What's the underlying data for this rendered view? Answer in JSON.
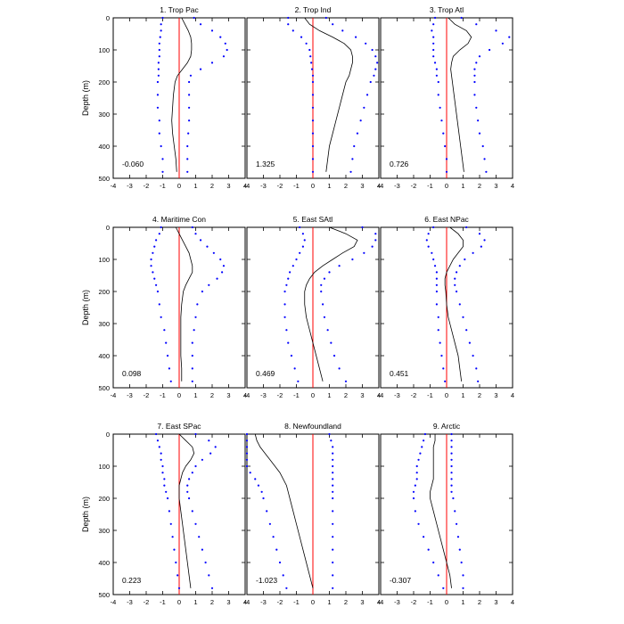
{
  "figure": {
    "xlim": [
      -4,
      4
    ],
    "ylim": [
      0,
      500
    ],
    "ylabel": "Depth (m)",
    "x_ticks": [
      -4,
      -3,
      -2,
      -1,
      0,
      1,
      2,
      3,
      4
    ],
    "y_ticks": [
      0,
      100,
      200,
      300,
      400,
      500
    ],
    "colors": {
      "mean_line": "#000000",
      "zero_line": "#ff0000",
      "bound_dots": "#0000ff"
    }
  },
  "chart_data": [
    {
      "type": "line",
      "title": "1. Trop Pac",
      "annotation": "-0.060",
      "depth": [
        0,
        20,
        40,
        60,
        80,
        100,
        120,
        140,
        160,
        180,
        200,
        240,
        280,
        320,
        360,
        400,
        440,
        480
      ],
      "series": [
        {
          "role": "mean",
          "values": [
            0.15,
            0.35,
            0.55,
            0.7,
            0.75,
            0.75,
            0.7,
            0.5,
            0.2,
            -0.1,
            -0.25,
            -0.35,
            -0.4,
            -0.45,
            -0.4,
            -0.3,
            -0.2,
            -0.15
          ]
        },
        {
          "role": "lower",
          "values": [
            -1.0,
            -1.1,
            -1.1,
            -1.15,
            -1.2,
            -1.2,
            -1.2,
            -1.25,
            -1.25,
            -1.25,
            -1.3,
            -1.3,
            -1.3,
            -1.2,
            -1.2,
            -1.1,
            -1.0,
            -1.0
          ]
        },
        {
          "role": "upper",
          "values": [
            0.9,
            1.3,
            2.0,
            2.5,
            2.8,
            2.9,
            2.7,
            2.0,
            1.3,
            0.7,
            0.6,
            0.6,
            0.6,
            0.6,
            0.55,
            0.5,
            0.5,
            0.5
          ]
        }
      ]
    },
    {
      "type": "line",
      "title": "2. Trop Ind",
      "annotation": "1.325",
      "depth": [
        0,
        20,
        40,
        60,
        80,
        100,
        120,
        140,
        160,
        180,
        200,
        240,
        280,
        320,
        360,
        400,
        440,
        480
      ],
      "series": [
        {
          "role": "mean",
          "values": [
            -0.5,
            -0.2,
            0.4,
            1.2,
            1.9,
            2.3,
            2.4,
            2.4,
            2.3,
            2.2,
            2.0,
            1.8,
            1.6,
            1.4,
            1.2,
            1.0,
            0.9,
            0.8
          ]
        },
        {
          "role": "lower",
          "values": [
            -1.5,
            -1.5,
            -1.2,
            -0.7,
            -0.4,
            -0.2,
            -0.15,
            -0.1,
            -0.05,
            0.0,
            0.0,
            0.0,
            0.0,
            0.0,
            0.0,
            0.0,
            0.0,
            0.0
          ]
        },
        {
          "role": "upper",
          "values": [
            0.8,
            1.2,
            1.8,
            2.6,
            3.2,
            3.6,
            3.8,
            3.9,
            3.8,
            3.7,
            3.5,
            3.3,
            3.1,
            2.9,
            2.7,
            2.5,
            2.4,
            2.3
          ]
        }
      ]
    },
    {
      "type": "line",
      "title": "3. Trop Atl",
      "annotation": "0.726",
      "depth": [
        0,
        20,
        40,
        60,
        80,
        100,
        120,
        140,
        160,
        180,
        200,
        240,
        280,
        320,
        360,
        400,
        440,
        480
      ],
      "series": [
        {
          "role": "mean",
          "values": [
            0.1,
            0.5,
            1.2,
            1.5,
            1.3,
            0.8,
            0.4,
            0.3,
            0.25,
            0.3,
            0.35,
            0.45,
            0.55,
            0.65,
            0.75,
            0.85,
            0.95,
            1.05
          ]
        },
        {
          "role": "lower",
          "values": [
            -0.7,
            -0.8,
            -0.9,
            -0.8,
            -0.8,
            -0.8,
            -0.8,
            -0.7,
            -0.6,
            -0.6,
            -0.5,
            -0.5,
            -0.4,
            -0.3,
            -0.2,
            -0.1,
            0.0,
            0.0
          ]
        },
        {
          "role": "upper",
          "values": [
            0.9,
            1.8,
            3.0,
            3.8,
            3.4,
            2.6,
            2.0,
            1.8,
            1.7,
            1.7,
            1.7,
            1.7,
            1.8,
            1.9,
            2.0,
            2.2,
            2.3,
            2.4
          ]
        }
      ]
    },
    {
      "type": "line",
      "title": "4. Maritime Con",
      "annotation": "0.098",
      "depth": [
        0,
        20,
        40,
        60,
        80,
        100,
        120,
        140,
        160,
        180,
        200,
        240,
        280,
        320,
        360,
        400,
        440,
        480
      ],
      "series": [
        {
          "role": "mean",
          "values": [
            -0.2,
            0.0,
            0.2,
            0.4,
            0.6,
            0.7,
            0.8,
            0.8,
            0.6,
            0.4,
            0.25,
            0.15,
            0.1,
            0.1,
            0.1,
            0.1,
            0.15,
            0.15
          ]
        },
        {
          "role": "lower",
          "values": [
            -1.1,
            -1.2,
            -1.4,
            -1.5,
            -1.6,
            -1.7,
            -1.7,
            -1.6,
            -1.5,
            -1.4,
            -1.3,
            -1.2,
            -1.1,
            -0.9,
            -0.8,
            -0.7,
            -0.6,
            -0.5
          ]
        },
        {
          "role": "upper",
          "values": [
            0.8,
            1.0,
            1.3,
            1.7,
            2.1,
            2.5,
            2.7,
            2.6,
            2.3,
            1.8,
            1.4,
            1.1,
            1.0,
            0.9,
            0.8,
            0.8,
            0.8,
            0.8
          ]
        }
      ]
    },
    {
      "type": "line",
      "title": "5. East SAtl",
      "annotation": "0.469",
      "depth": [
        0,
        20,
        40,
        60,
        80,
        100,
        120,
        140,
        160,
        180,
        200,
        240,
        280,
        320,
        360,
        400,
        440,
        480
      ],
      "series": [
        {
          "role": "mean",
          "values": [
            1.0,
            2.0,
            2.7,
            2.5,
            1.8,
            1.2,
            0.6,
            0.1,
            -0.2,
            -0.4,
            -0.5,
            -0.5,
            -0.4,
            -0.2,
            0.0,
            0.2,
            0.4,
            0.6
          ]
        },
        {
          "role": "lower",
          "values": [
            -0.8,
            -0.6,
            -0.5,
            -0.6,
            -0.8,
            -1.0,
            -1.2,
            -1.4,
            -1.5,
            -1.6,
            -1.7,
            -1.7,
            -1.7,
            -1.6,
            -1.5,
            -1.3,
            -1.1,
            -0.9
          ]
        },
        {
          "role": "upper",
          "values": [
            3.0,
            3.8,
            3.8,
            3.6,
            3.1,
            2.4,
            1.6,
            1.0,
            0.7,
            0.5,
            0.5,
            0.6,
            0.7,
            0.9,
            1.1,
            1.3,
            1.6,
            2.0
          ]
        }
      ]
    },
    {
      "type": "line",
      "title": "6. East NPac",
      "annotation": "0.451",
      "depth": [
        0,
        20,
        40,
        60,
        80,
        100,
        120,
        140,
        160,
        180,
        200,
        240,
        280,
        320,
        360,
        400,
        440,
        480
      ],
      "series": [
        {
          "role": "mean",
          "values": [
            0.2,
            0.7,
            1.0,
            1.0,
            0.7,
            0.4,
            0.2,
            0.0,
            -0.1,
            -0.1,
            -0.05,
            0.0,
            0.1,
            0.3,
            0.5,
            0.7,
            0.8,
            0.9
          ]
        },
        {
          "role": "lower",
          "values": [
            -0.8,
            -1.1,
            -1.2,
            -1.1,
            -0.9,
            -0.8,
            -0.7,
            -0.6,
            -0.6,
            -0.6,
            -0.6,
            -0.6,
            -0.5,
            -0.5,
            -0.4,
            -0.3,
            -0.2,
            -0.1
          ]
        },
        {
          "role": "upper",
          "values": [
            1.2,
            2.0,
            2.3,
            2.1,
            1.6,
            1.1,
            0.8,
            0.6,
            0.5,
            0.5,
            0.6,
            0.8,
            1.0,
            1.2,
            1.4,
            1.6,
            1.8,
            1.9
          ]
        }
      ]
    },
    {
      "type": "line",
      "title": "7. East SPac",
      "annotation": "0.223",
      "depth": [
        0,
        20,
        40,
        60,
        80,
        100,
        120,
        140,
        160,
        180,
        200,
        240,
        280,
        320,
        360,
        400,
        440,
        480
      ],
      "series": [
        {
          "role": "mean",
          "values": [
            0.0,
            0.4,
            0.8,
            0.9,
            0.7,
            0.4,
            0.2,
            0.1,
            0.0,
            0.0,
            0.0,
            0.1,
            0.2,
            0.3,
            0.4,
            0.5,
            0.6,
            0.7
          ]
        },
        {
          "role": "lower",
          "values": [
            -1.4,
            -1.3,
            -1.2,
            -1.1,
            -1.1,
            -1.0,
            -1.0,
            -0.9,
            -0.9,
            -0.8,
            -0.7,
            -0.6,
            -0.5,
            -0.4,
            -0.3,
            -0.2,
            -0.1,
            0.0
          ]
        },
        {
          "role": "upper",
          "values": [
            1.0,
            1.8,
            2.2,
            1.9,
            1.4,
            1.0,
            0.8,
            0.6,
            0.5,
            0.5,
            0.6,
            0.8,
            1.0,
            1.2,
            1.4,
            1.6,
            1.8,
            2.0
          ]
        }
      ]
    },
    {
      "type": "line",
      "title": "8. Newfoundland",
      "annotation": "-1.023",
      "depth": [
        0,
        20,
        40,
        60,
        80,
        100,
        120,
        140,
        160,
        180,
        200,
        240,
        280,
        320,
        360,
        400,
        440,
        480
      ],
      "series": [
        {
          "role": "mean",
          "values": [
            -3.5,
            -3.4,
            -3.2,
            -2.9,
            -2.6,
            -2.3,
            -2.0,
            -1.8,
            -1.6,
            -1.5,
            -1.4,
            -1.2,
            -1.0,
            -0.8,
            -0.6,
            -0.4,
            -0.2,
            0.0
          ]
        },
        {
          "role": "lower",
          "values": [
            -4.0,
            -4.0,
            -4.0,
            -4.0,
            -4.0,
            -4.0,
            -3.8,
            -3.5,
            -3.3,
            -3.1,
            -3.0,
            -2.8,
            -2.6,
            -2.4,
            -2.2,
            -2.0,
            -1.8,
            -1.6
          ]
        },
        {
          "role": "upper",
          "values": [
            1.0,
            1.1,
            1.2,
            1.2,
            1.2,
            1.2,
            1.2,
            1.2,
            1.2,
            1.2,
            1.2,
            1.2,
            1.2,
            1.2,
            1.2,
            1.2,
            1.2,
            1.2
          ]
        }
      ]
    },
    {
      "type": "line",
      "title": "9. Arctic",
      "annotation": "-0.307",
      "depth": [
        0,
        20,
        40,
        60,
        80,
        100,
        120,
        140,
        160,
        180,
        200,
        240,
        280,
        320,
        360,
        400,
        440,
        480
      ],
      "series": [
        {
          "role": "mean",
          "values": [
            -0.7,
            -0.7,
            -0.8,
            -0.8,
            -0.8,
            -0.8,
            -0.8,
            -0.8,
            -0.9,
            -1.0,
            -1.0,
            -0.8,
            -0.6,
            -0.4,
            -0.2,
            0.0,
            0.2,
            0.3
          ]
        },
        {
          "role": "lower",
          "values": [
            -1.3,
            -1.4,
            -1.5,
            -1.6,
            -1.7,
            -1.8,
            -1.8,
            -1.8,
            -1.9,
            -2.0,
            -2.0,
            -1.9,
            -1.7,
            -1.4,
            -1.1,
            -0.8,
            -0.5,
            -0.2
          ]
        },
        {
          "role": "upper",
          "values": [
            0.3,
            0.3,
            0.3,
            0.3,
            0.3,
            0.3,
            0.3,
            0.3,
            0.3,
            0.3,
            0.4,
            0.5,
            0.6,
            0.7,
            0.8,
            0.9,
            1.0,
            1.0
          ]
        }
      ]
    }
  ]
}
